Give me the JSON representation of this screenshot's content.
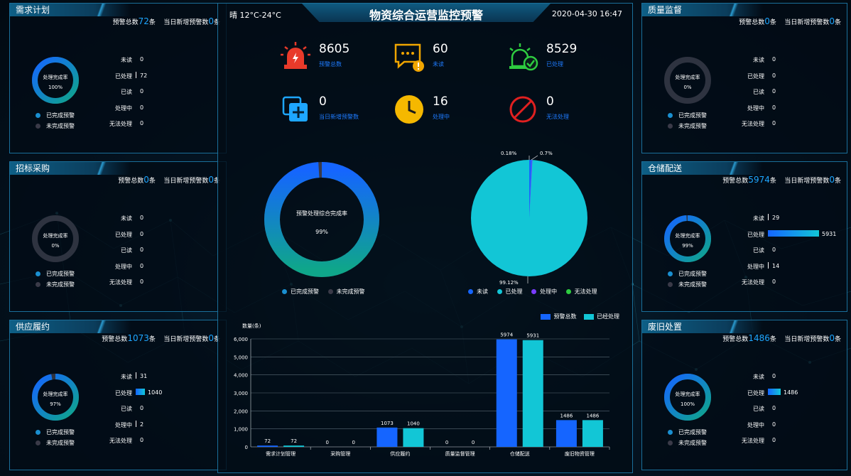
{
  "colors": {
    "accent": "#1ea6ff",
    "bar_blue": "#1565ff",
    "bar_cyan": "#12c6d6",
    "done": "#0fa6a0",
    "undone": "#3a3a48",
    "orange": "#f0a500",
    "red": "#e02020",
    "green": "#2ecc40"
  },
  "header": {
    "title": "物资综合运营监控预警",
    "weather": "晴 12°C-24°C",
    "datetime": "2020-04-30 16:47"
  },
  "row_labels": [
    "未读",
    "已处理",
    "已读",
    "处理中",
    "无法处理"
  ],
  "legend_small": [
    "已完成预警",
    "未完成预警"
  ],
  "panels": {
    "demand": {
      "title": "需求计划",
      "total_label": "预警总数",
      "total": "72",
      "unit": "条",
      "new_label": "当日新增预警数",
      "new": "0",
      "new_unit": "条",
      "rate_label": "处理完成率",
      "rate": "100%",
      "completion": 1.0,
      "values": [
        "0",
        "72",
        "0",
        "0",
        "0"
      ],
      "nums": [
        0,
        72,
        0,
        0,
        0
      ]
    },
    "bidding": {
      "title": "招标采购",
      "total_label": "预警总数",
      "total": "0",
      "unit": "条",
      "new_label": "当日新增预警数",
      "new": "0",
      "new_unit": "条",
      "rate_label": "处理完成率",
      "rate": "0%",
      "completion": 0.0,
      "values": [
        "0",
        "0",
        "0",
        "0",
        "0"
      ],
      "nums": [
        0,
        0,
        0,
        0,
        0
      ]
    },
    "supply": {
      "title": "供应履约",
      "total_label": "预警总数",
      "total": "1073",
      "unit": "条",
      "new_label": "当日新增预警数",
      "new": "0",
      "new_unit": "条",
      "rate_label": "处理完成率",
      "rate": "97%",
      "completion": 0.97,
      "values": [
        "31",
        "1040",
        "0",
        "2",
        "0"
      ],
      "nums": [
        31,
        1040,
        0,
        2,
        0
      ]
    },
    "quality": {
      "title": "质量监督",
      "total_label": "预警总数",
      "total": "0",
      "unit": "条",
      "new_label": "当日新增预警数",
      "new": "0",
      "new_unit": "条",
      "rate_label": "处理完成率",
      "rate": "0%",
      "completion": 0.0,
      "values": [
        "0",
        "0",
        "0",
        "0",
        "0"
      ],
      "nums": [
        0,
        0,
        0,
        0,
        0
      ]
    },
    "warehouse": {
      "title": "仓储配送",
      "total_label": "预警总数",
      "total": "5974",
      "unit": "条",
      "new_label": "当日新增预警数",
      "new": "0",
      "new_unit": "条",
      "rate_label": "处理完成率",
      "rate": "99%",
      "completion": 0.99,
      "values": [
        "29",
        "5931",
        "0",
        "14",
        "0"
      ],
      "nums": [
        29,
        5931,
        0,
        14,
        0
      ]
    },
    "disposal": {
      "title": "废旧处置",
      "total_label": "预警总数",
      "total": "1486",
      "unit": "条",
      "new_label": "当日新增预警数",
      "new": "0",
      "new_unit": "条",
      "rate_label": "处理完成率",
      "rate": "100%",
      "completion": 1.0,
      "values": [
        "0",
        "1486",
        "0",
        "0",
        "0"
      ],
      "nums": [
        0,
        1486,
        0,
        0,
        0
      ]
    }
  },
  "stats": [
    {
      "value": "8605",
      "label": "预警总数",
      "icon": "alarm-icon"
    },
    {
      "value": "60",
      "label": "未读",
      "icon": "message-warning-icon"
    },
    {
      "value": "8529",
      "label": "已处理",
      "icon": "alarm-check-icon"
    },
    {
      "value": "0",
      "label": "当日新增预警数",
      "icon": "add-icon"
    },
    {
      "value": "16",
      "label": "处理中",
      "icon": "clock-icon"
    },
    {
      "value": "0",
      "label": "无法处理",
      "icon": "forbidden-icon"
    }
  ],
  "center_donut": {
    "label": "预警处理综合完成率",
    "rate": "99%",
    "completion": 0.99,
    "legend": [
      "已完成预警",
      "未完成预警"
    ]
  },
  "pie": {
    "labels_top_left": "0.18%",
    "labels_top_right": "0.7%",
    "label_bottom": "99.12%",
    "legend": [
      "未读",
      "已处理",
      "处理中",
      "无法处理"
    ],
    "legend_colors": [
      "#1565ff",
      "#12c6d6",
      "#7a3cff",
      "#2ecc40"
    ]
  },
  "chart_data": {
    "type": "bar",
    "ylabel": "数量(条)",
    "ylim": [
      0,
      6000
    ],
    "yticks": [
      "0",
      "1,000",
      "2,000",
      "3,000",
      "4,000",
      "5,000",
      "6,000"
    ],
    "categories": [
      "需求计划管理",
      "采购管理",
      "供应履约",
      "质量监督管理",
      "仓储配送",
      "废旧物资管理"
    ],
    "series": [
      {
        "name": "预警总数",
        "values": [
          72,
          0,
          1073,
          0,
          5974,
          1486
        ]
      },
      {
        "name": "已经处理",
        "values": [
          72,
          0,
          1040,
          0,
          5931,
          1486
        ]
      }
    ],
    "legend_placement": "top-right"
  }
}
